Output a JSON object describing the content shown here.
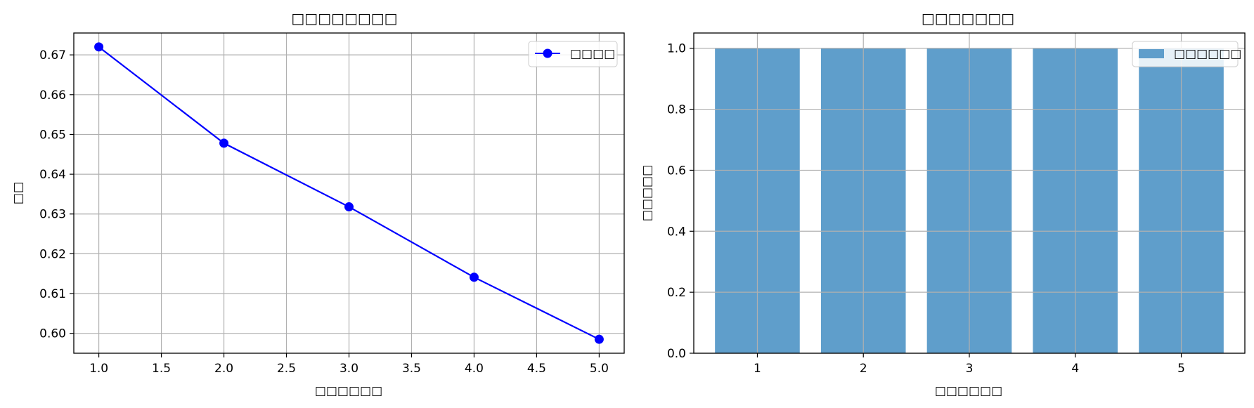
{
  "chart_data": [
    {
      "type": "line",
      "title": "□□□□□□□□",
      "xlabel": "□□□□□□",
      "ylabel": "□□",
      "x": [
        1.0,
        2.0,
        3.0,
        4.0,
        5.0
      ],
      "series": [
        {
          "name": "□□□□",
          "values": [
            0.672,
            0.6478,
            0.6318,
            0.6141,
            0.5985
          ],
          "color": "#0000ff",
          "marker": "circle"
        }
      ],
      "xlim": [
        0.8,
        5.2
      ],
      "ylim": [
        0.595,
        0.6755
      ],
      "xticks": [
        "1.0",
        "1.5",
        "2.0",
        "2.5",
        "3.0",
        "3.5",
        "4.0",
        "4.5",
        "5.0"
      ],
      "yticks": [
        "0.60",
        "0.61",
        "0.62",
        "0.63",
        "0.64",
        "0.65",
        "0.66",
        "0.67"
      ],
      "grid": true,
      "legend": "top-right"
    },
    {
      "type": "bar",
      "title": "□□□□□□□",
      "xlabel": "□□□□□□",
      "ylabel": "□□□□□",
      "categories": [
        "1",
        "2",
        "3",
        "4",
        "5"
      ],
      "series": [
        {
          "name": "□□□□□□",
          "values": [
            1.0,
            1.0,
            1.0,
            1.0,
            1.0
          ],
          "color": "#5f9ecb"
        }
      ],
      "ylim": [
        0,
        1.05
      ],
      "yticks": [
        "0.0",
        "0.2",
        "0.4",
        "0.6",
        "0.8",
        "1.0"
      ],
      "grid": true,
      "legend": "top-right"
    }
  ]
}
